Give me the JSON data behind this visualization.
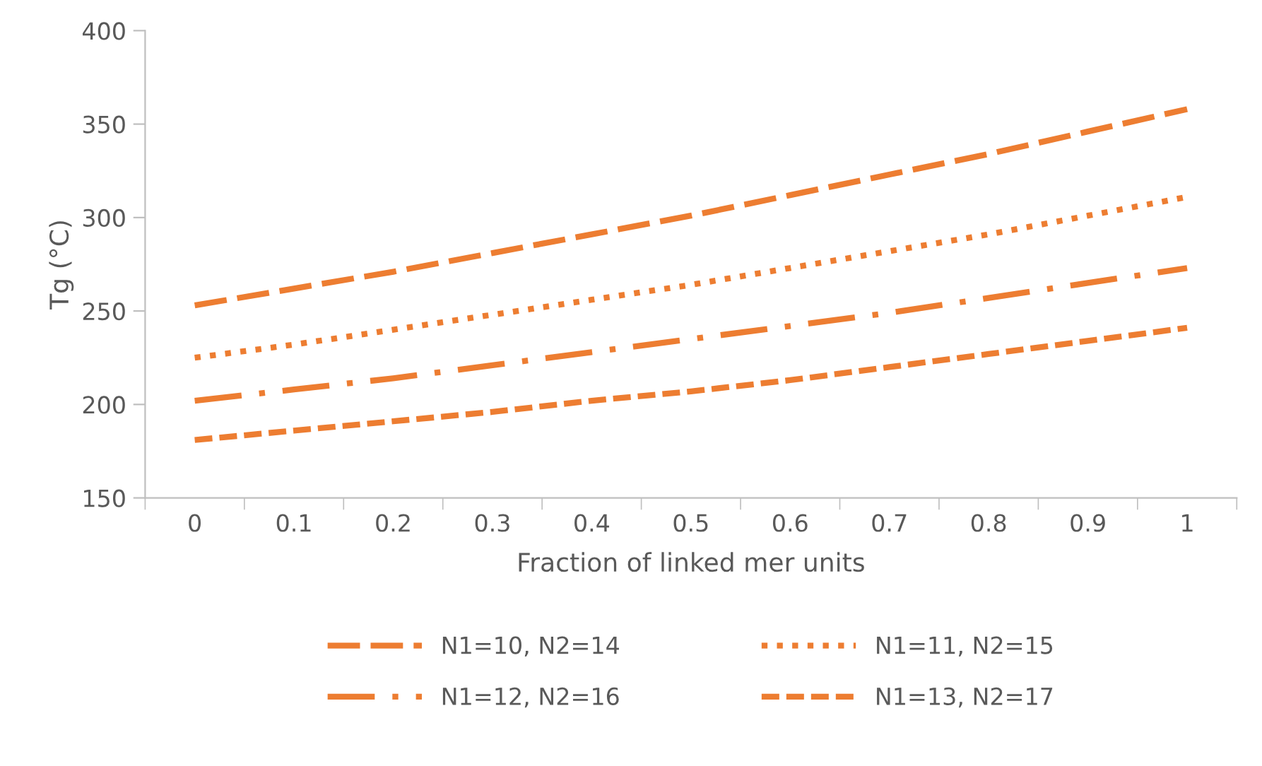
{
  "chart_data": {
    "type": "line",
    "xlabel": "Fraction of linked mer units",
    "ylabel": "Tg (°C)",
    "categories": [
      "0",
      "0.1",
      "0.2",
      "0.3",
      "0.4",
      "0.5",
      "0.6",
      "0.7",
      "0.8",
      "0.9",
      "1"
    ],
    "ylim": [
      150,
      400
    ],
    "yticks": [
      150,
      200,
      250,
      300,
      350,
      400
    ],
    "grid": false,
    "legend": "bottom",
    "marker": "none",
    "series": [
      {
        "name": "N1=10, N2=14",
        "color": "#ed7d31",
        "line_style": "long_dashed",
        "values": [
          253,
          262,
          271,
          281,
          291,
          301,
          312,
          323,
          334,
          346,
          358
        ]
      },
      {
        "name": "N1=11, N2=15",
        "color": "#ed7d31",
        "line_style": "dotted",
        "values": [
          225,
          232,
          240,
          248,
          256,
          264,
          273,
          282,
          291,
          301,
          311
        ]
      },
      {
        "name": "N1=12, N2=16",
        "color": "#ed7d31",
        "line_style": "dashdot",
        "values": [
          202,
          208,
          214,
          221,
          228,
          235,
          242,
          249,
          257,
          265,
          273
        ]
      },
      {
        "name": "N1=13, N2=17",
        "color": "#ed7d31",
        "line_style": "dashed",
        "values": [
          181,
          186,
          191,
          196,
          202,
          207,
          213,
          220,
          227,
          234,
          241
        ]
      }
    ]
  }
}
